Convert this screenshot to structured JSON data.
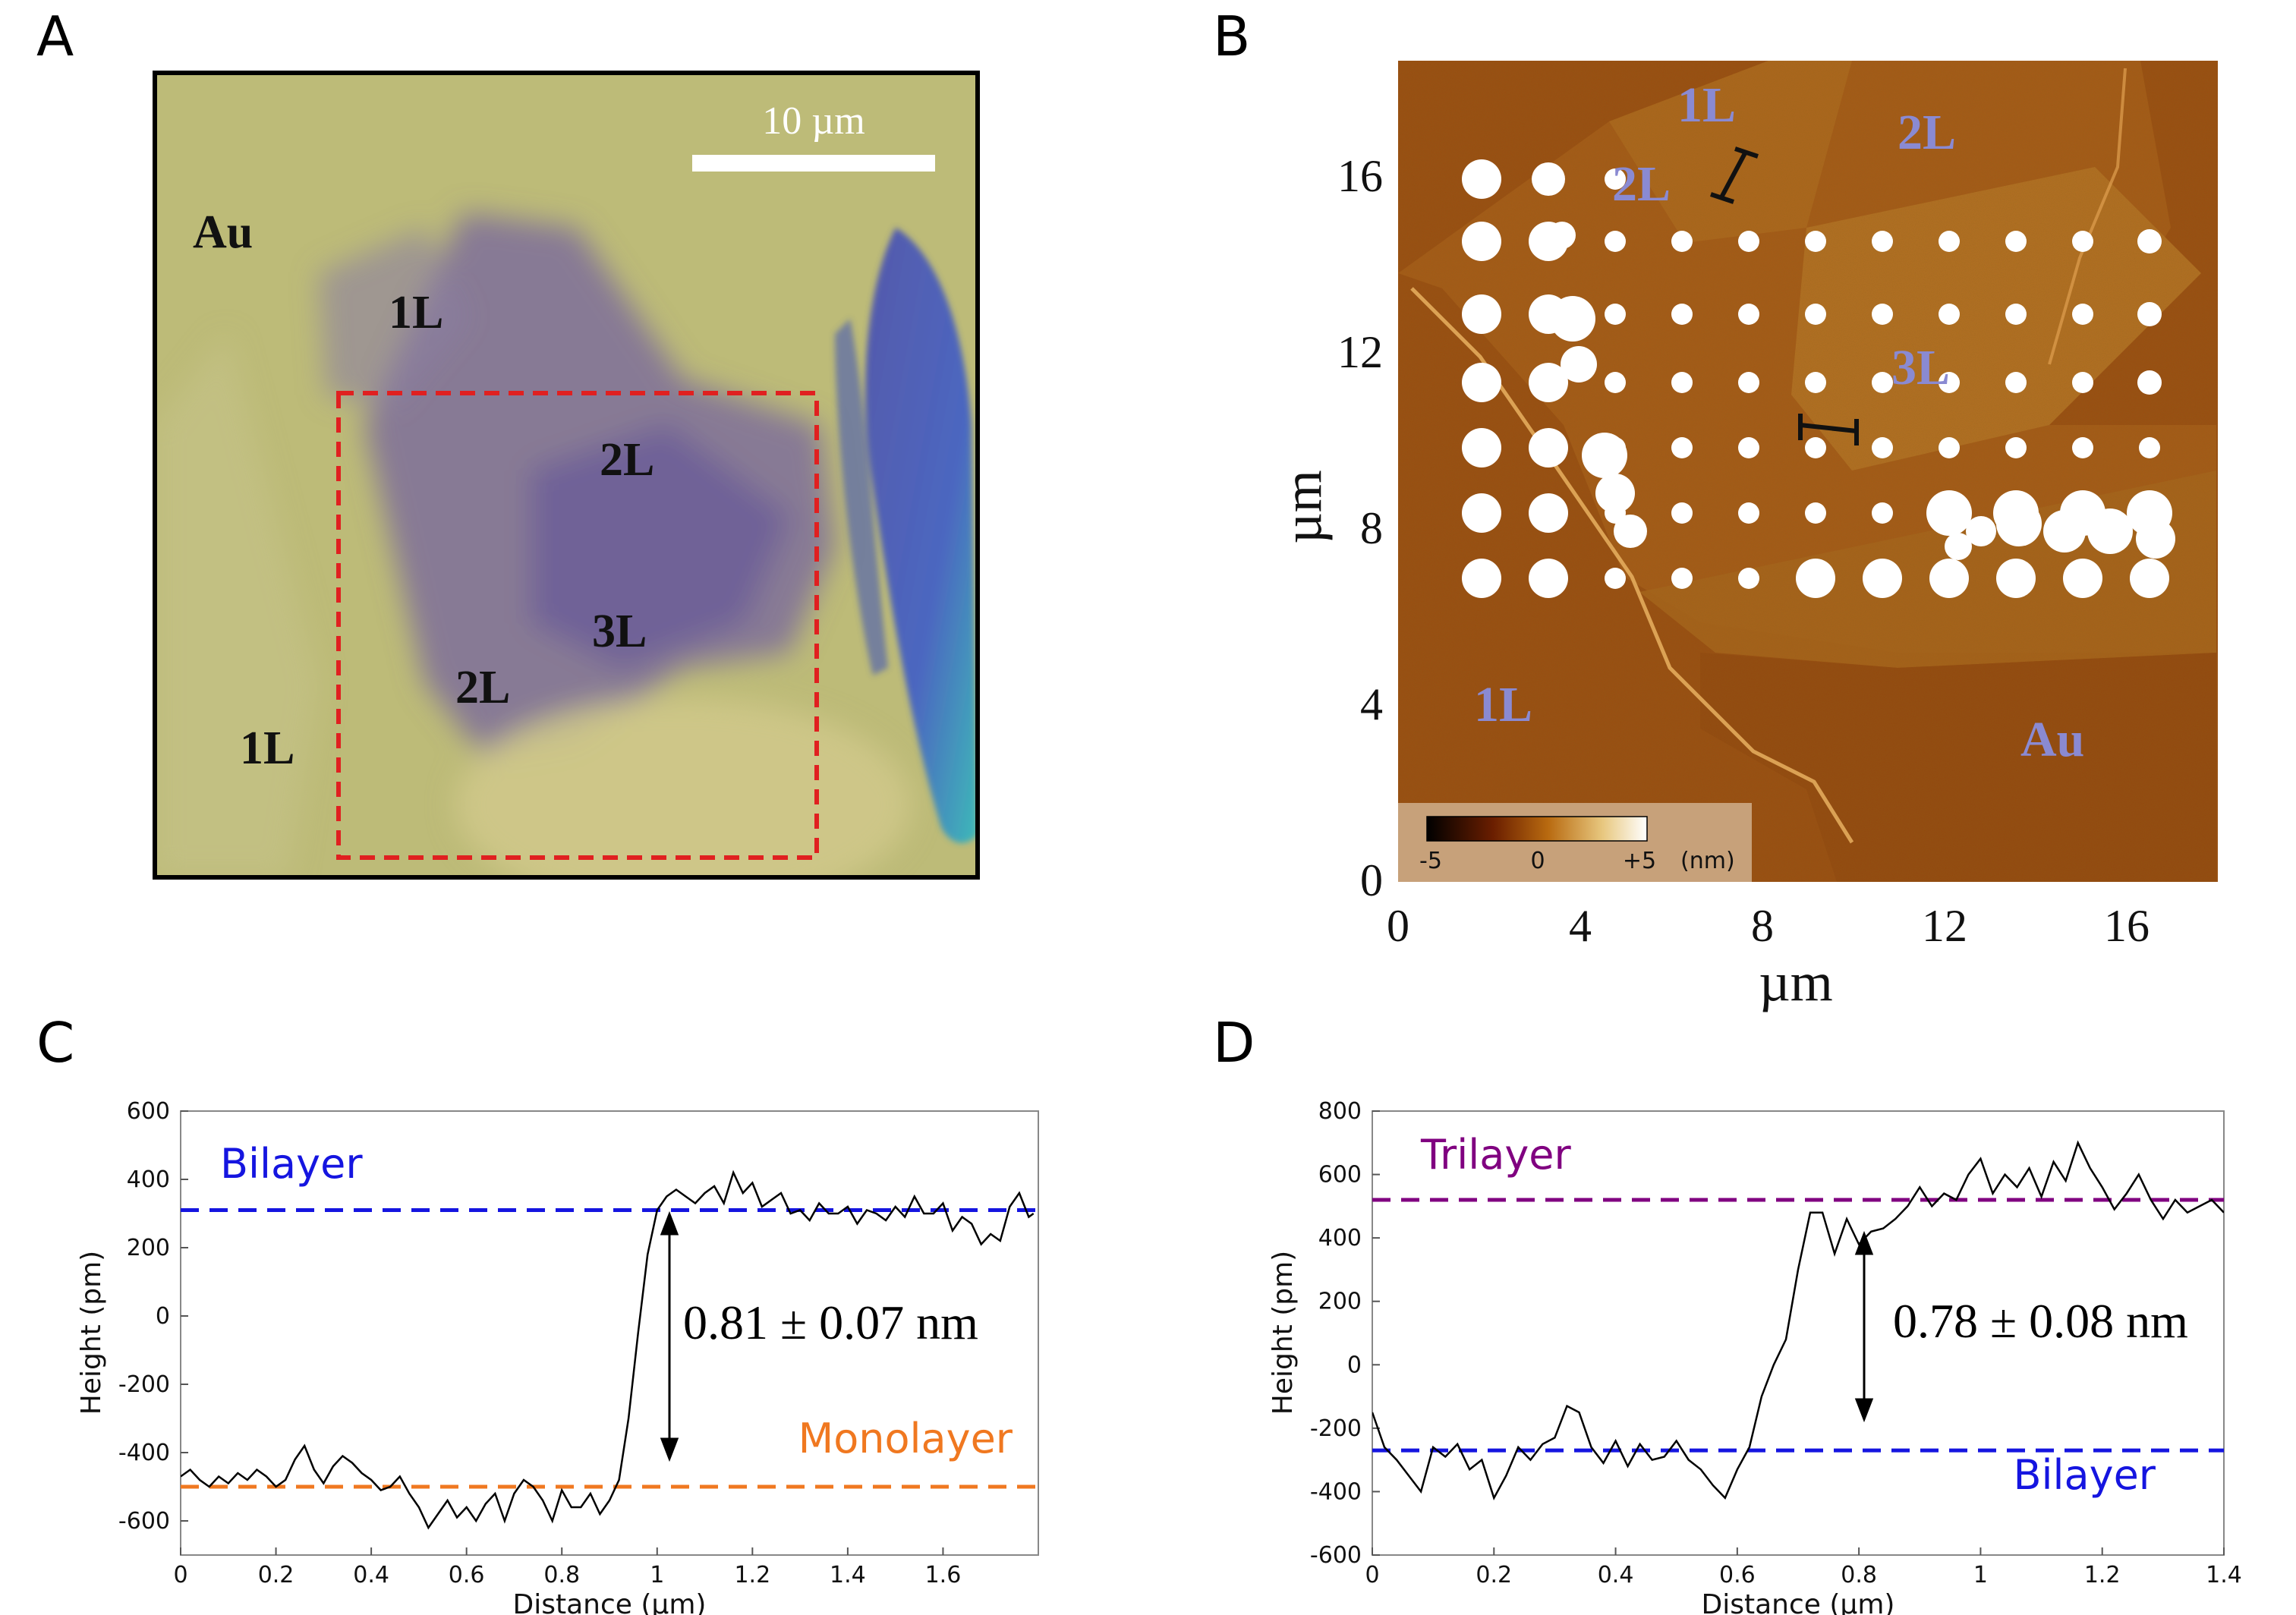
{
  "panels": {
    "a": {
      "letter": "A",
      "scale_bar_label": "10 µm",
      "labels": [
        "Au",
        "1L",
        "2L",
        "3L",
        "2L",
        "1L"
      ]
    },
    "b": {
      "letter": "B",
      "labels": [
        "1L",
        "2L",
        "2L",
        "3L",
        "1L",
        "Au"
      ],
      "xlabel": "µm",
      "ylabel": "µm",
      "xticks": [
        "0",
        "4",
        "8",
        "12",
        "16"
      ],
      "yticks": [
        "0",
        "4",
        "8",
        "12",
        "16"
      ],
      "colorbar": {
        "ticks": [
          "-5",
          "0",
          "+5"
        ],
        "unit": "(nm)"
      }
    },
    "c": {
      "letter": "C"
    },
    "d": {
      "letter": "D"
    }
  },
  "chart_data": [
    {
      "type": "line",
      "panel": "C",
      "xlabel": "Distance (µm)",
      "ylabel": "Height (pm)",
      "xlim": [
        0,
        1.8
      ],
      "ylim": [
        -700,
        600
      ],
      "xticks": [
        "0",
        "0.2",
        "0.4",
        "0.6",
        "0.8",
        "1",
        "1.2",
        "1.4",
        "1.6"
      ],
      "yticks": [
        "600",
        "400",
        "200",
        "0",
        "-200",
        "-400",
        "-600"
      ],
      "reference_lines": [
        {
          "label": "Bilayer",
          "y": 310,
          "color": "#1515e0"
        },
        {
          "label": "Monolayer",
          "y": -500,
          "color": "#f07820"
        }
      ],
      "annotation": "0.81 ± 0.07 nm",
      "series": [
        {
          "x": [
            0,
            0.02,
            0.04,
            0.06,
            0.08,
            0.1,
            0.12,
            0.14,
            0.16,
            0.18,
            0.2,
            0.22,
            0.24,
            0.26,
            0.28,
            0.3,
            0.32,
            0.34,
            0.36,
            0.38,
            0.4,
            0.42,
            0.44,
            0.46,
            0.48,
            0.5,
            0.52,
            0.54,
            0.56,
            0.58,
            0.6,
            0.62,
            0.64,
            0.66,
            0.68,
            0.7,
            0.72,
            0.74,
            0.76,
            0.78,
            0.8,
            0.82,
            0.84,
            0.86,
            0.88,
            0.9,
            0.92,
            0.94,
            0.96,
            0.98,
            1,
            1.02,
            1.04,
            1.06,
            1.08,
            1.1,
            1.12,
            1.14,
            1.16,
            1.18,
            1.2,
            1.22,
            1.24,
            1.26,
            1.28,
            1.3,
            1.32,
            1.34,
            1.36,
            1.38,
            1.4,
            1.42,
            1.44,
            1.46,
            1.48,
            1.5,
            1.52,
            1.54,
            1.56,
            1.58,
            1.6,
            1.62,
            1.64,
            1.66,
            1.68,
            1.7,
            1.72,
            1.74,
            1.76,
            1.78,
            1.79
          ],
          "values": [
            -470,
            -450,
            -480,
            -500,
            -470,
            -490,
            -460,
            -480,
            -450,
            -470,
            -500,
            -480,
            -420,
            -380,
            -450,
            -490,
            -440,
            -410,
            -430,
            -460,
            -480,
            -510,
            -500,
            -470,
            -520,
            -560,
            -620,
            -580,
            -540,
            -590,
            -560,
            -600,
            -550,
            -520,
            -600,
            -520,
            -480,
            -500,
            -540,
            -600,
            -510,
            -560,
            -560,
            -520,
            -580,
            -540,
            -480,
            -300,
            -50,
            180,
            310,
            350,
            370,
            350,
            330,
            360,
            380,
            330,
            420,
            360,
            390,
            320,
            340,
            360,
            300,
            310,
            280,
            330,
            300,
            300,
            320,
            270,
            310,
            300,
            280,
            320,
            290,
            350,
            300,
            300,
            330,
            250,
            290,
            270,
            210,
            240,
            220,
            320,
            360,
            290,
            300
          ]
        }
      ]
    },
    {
      "type": "line",
      "panel": "D",
      "xlabel": "Distance (µm)",
      "ylabel": "Height (pm)",
      "xlim": [
        0,
        1.4
      ],
      "ylim": [
        -600,
        800
      ],
      "xticks": [
        "0",
        "0.2",
        "0.4",
        "0.6",
        "0.8",
        "1",
        "1.2",
        "1.4"
      ],
      "yticks": [
        "800",
        "600",
        "400",
        "200",
        "0",
        "-200",
        "-400",
        "-600"
      ],
      "reference_lines": [
        {
          "label": "Trilayer",
          "y": 520,
          "color": "#800080"
        },
        {
          "label": "Bilayer",
          "y": -270,
          "color": "#1515e0"
        }
      ],
      "annotation": "0.78 ± 0.08 nm",
      "series": [
        {
          "x": [
            0,
            0.02,
            0.04,
            0.06,
            0.08,
            0.1,
            0.12,
            0.14,
            0.16,
            0.18,
            0.2,
            0.22,
            0.24,
            0.26,
            0.28,
            0.3,
            0.32,
            0.34,
            0.36,
            0.38,
            0.4,
            0.42,
            0.44,
            0.46,
            0.48,
            0.5,
            0.52,
            0.54,
            0.56,
            0.58,
            0.6,
            0.62,
            0.64,
            0.66,
            0.68,
            0.7,
            0.72,
            0.74,
            0.76,
            0.78,
            0.8,
            0.82,
            0.84,
            0.86,
            0.88,
            0.9,
            0.92,
            0.94,
            0.96,
            0.98,
            1,
            1.02,
            1.04,
            1.06,
            1.08,
            1.1,
            1.12,
            1.14,
            1.16,
            1.18,
            1.2,
            1.22,
            1.24,
            1.26,
            1.28,
            1.3,
            1.32,
            1.34,
            1.36,
            1.38,
            1.4
          ],
          "values": [
            -150,
            -260,
            -300,
            -350,
            -400,
            -260,
            -290,
            -250,
            -330,
            -300,
            -420,
            -350,
            -260,
            -300,
            -250,
            -230,
            -130,
            -150,
            -260,
            -310,
            -240,
            -320,
            -250,
            -300,
            -290,
            -240,
            -300,
            -330,
            -380,
            -420,
            -330,
            -260,
            -100,
            0,
            80,
            300,
            480,
            480,
            350,
            460,
            380,
            420,
            430,
            460,
            500,
            560,
            500,
            540,
            520,
            600,
            650,
            540,
            600,
            560,
            620,
            530,
            640,
            580,
            700,
            620,
            560,
            490,
            540,
            600,
            520,
            460,
            520,
            480,
            500,
            520,
            480
          ]
        }
      ]
    }
  ]
}
